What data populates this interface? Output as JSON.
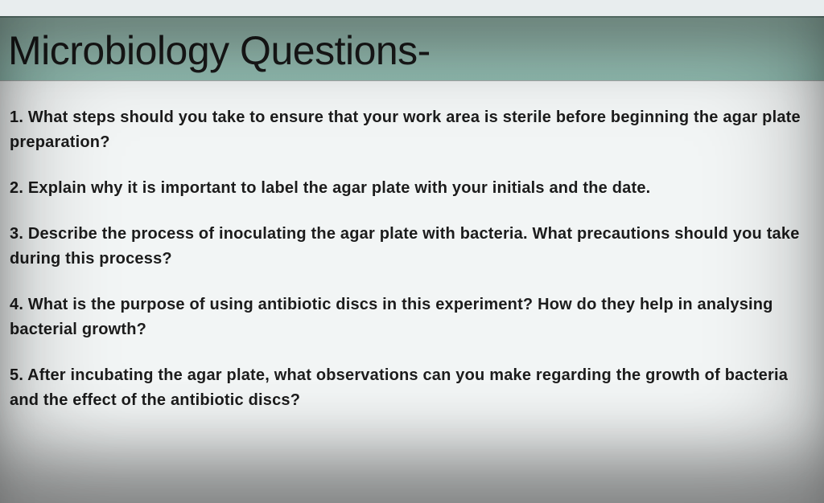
{
  "document": {
    "title": "Microbiology Questions-",
    "title_style": {
      "background_color": "#9cc4b8",
      "text_color": "#1a1a1a",
      "font_size_pt": 38,
      "font_weight": 400
    },
    "page_background": "#f2f5f5",
    "question_style": {
      "text_color": "#1c1c1c",
      "font_size_pt": 15,
      "font_weight": 700,
      "line_height": 1.55
    },
    "questions": [
      "1. What steps should you take to ensure that your work area is sterile before beginning the agar plate preparation?",
      "2. Explain why it is important to label the agar plate with your initials and the date.",
      "3. Describe the process of inoculating the agar plate with bacteria. What precautions should you take during this process?",
      "4. What is the purpose of using antibiotic discs in this experiment? How do they help in analysing bacterial growth?",
      "5. After incubating the agar plate, what observations can you make regarding the growth of bacteria and the effect of the antibiotic discs?"
    ]
  }
}
